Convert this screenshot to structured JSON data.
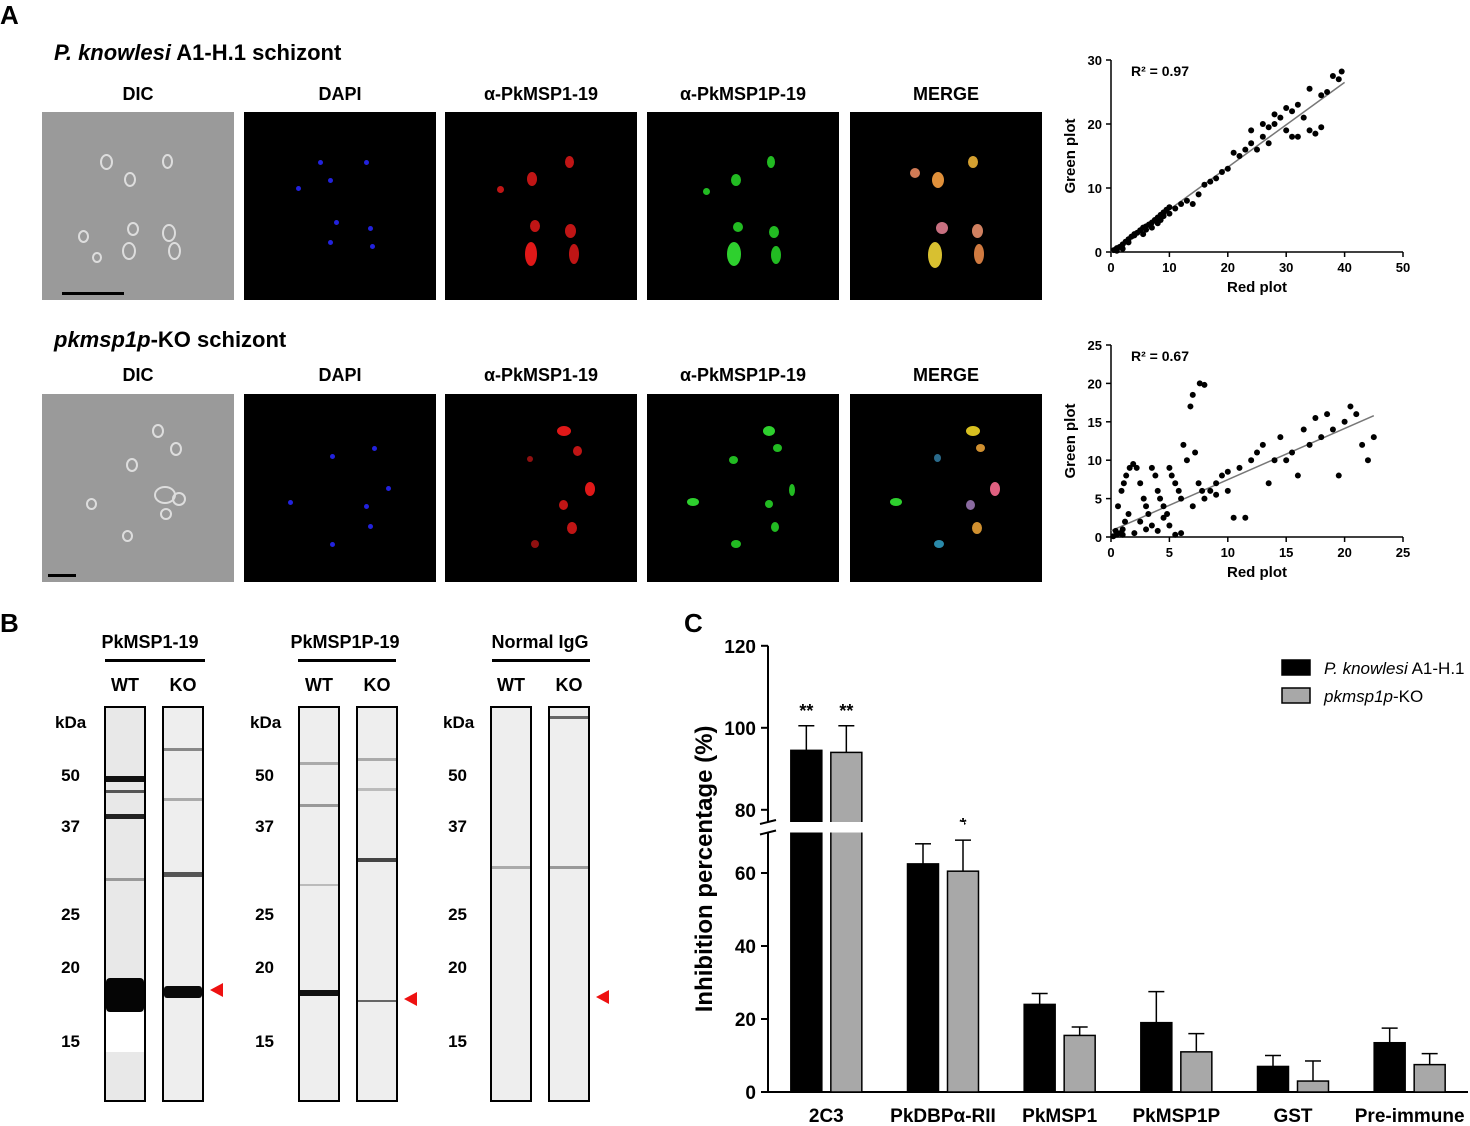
{
  "panels": {
    "A": "A",
    "B": "B",
    "C": "C"
  },
  "panel_a": {
    "rows": [
      {
        "title_italic": "P. knowlesi",
        "title_rest": " A1-H.1 schizont"
      },
      {
        "title_italic": "pkmsp1p",
        "title_rest": "-KO schizont"
      }
    ],
    "channels": [
      "DIC",
      "DAPI",
      "α-PkMSP1-19",
      "α-PkMSP1P-19",
      "MERGE"
    ]
  },
  "chart_data": [
    {
      "type": "scatter",
      "title": "",
      "annotation": "R² = 0.97",
      "xlabel": "Red plot",
      "ylabel": "Green plot",
      "xlim": [
        0,
        50
      ],
      "ylim": [
        0,
        30
      ],
      "xticks": [
        0,
        10,
        20,
        30,
        40,
        50
      ],
      "yticks": [
        0,
        10,
        20,
        30
      ],
      "fit_line": [
        [
          0,
          0
        ],
        [
          40,
          26.5
        ]
      ],
      "points": [
        [
          0.5,
          0.3
        ],
        [
          1,
          0.6
        ],
        [
          1.5,
          0.8
        ],
        [
          2,
          1.2
        ],
        [
          2.5,
          1.6
        ],
        [
          3,
          2
        ],
        [
          3.5,
          2.4
        ],
        [
          4,
          2.6
        ],
        [
          4.5,
          3
        ],
        [
          5,
          3.4
        ],
        [
          5.5,
          3.8
        ],
        [
          6,
          4
        ],
        [
          6.5,
          4.3
        ],
        [
          7,
          4.6
        ],
        [
          7.5,
          5
        ],
        [
          8,
          5.4
        ],
        [
          8.5,
          5.8
        ],
        [
          9,
          6.2
        ],
        [
          9.5,
          6.6
        ],
        [
          10,
          7
        ],
        [
          3,
          1.5
        ],
        [
          4,
          2.8
        ],
        [
          5.5,
          2.8
        ],
        [
          6,
          3.5
        ],
        [
          7,
          3.8
        ],
        [
          8,
          4.5
        ],
        [
          8.5,
          5
        ],
        [
          9,
          5.6
        ],
        [
          10,
          6
        ],
        [
          11,
          6.8
        ],
        [
          12,
          7.5
        ],
        [
          13,
          8
        ],
        [
          14,
          7.5
        ],
        [
          15,
          9
        ],
        [
          16,
          10.5
        ],
        [
          17,
          11
        ],
        [
          18,
          11.5
        ],
        [
          19,
          12.5
        ],
        [
          20,
          13
        ],
        [
          21,
          15.5
        ],
        [
          22,
          15
        ],
        [
          23,
          16
        ],
        [
          24,
          17
        ],
        [
          25,
          16
        ],
        [
          26,
          18
        ],
        [
          27,
          19.5
        ],
        [
          28,
          20
        ],
        [
          29,
          21
        ],
        [
          30,
          19
        ],
        [
          31,
          22
        ],
        [
          32,
          18
        ],
        [
          33,
          21
        ],
        [
          34,
          19
        ],
        [
          35,
          18.5
        ],
        [
          36,
          19.5
        ],
        [
          34,
          25.5
        ],
        [
          36,
          24.5
        ],
        [
          37,
          25
        ],
        [
          38,
          27.5
        ],
        [
          39,
          27
        ],
        [
          39.5,
          28.2
        ],
        [
          24,
          19
        ],
        [
          26,
          20
        ],
        [
          28,
          21.5
        ],
        [
          30,
          22.5
        ],
        [
          32,
          23
        ],
        [
          31,
          18
        ],
        [
          27,
          17
        ],
        [
          2,
          0.5
        ],
        [
          1,
          0.2
        ]
      ]
    },
    {
      "type": "scatter",
      "title": "",
      "annotation": "R² = 0.67",
      "xlabel": "Red plot",
      "ylabel": "Green plot",
      "xlim": [
        0,
        25
      ],
      "ylim": [
        0,
        25
      ],
      "xticks": [
        0,
        5,
        10,
        15,
        20,
        25
      ],
      "yticks": [
        0,
        5,
        10,
        15,
        20,
        25
      ],
      "fit_line": [
        [
          0,
          0.8
        ],
        [
          22.5,
          15.8
        ]
      ],
      "points": [
        [
          0.2,
          0.1
        ],
        [
          0.5,
          0.3
        ],
        [
          0.8,
          0.5
        ],
        [
          1,
          1
        ],
        [
          1.2,
          2
        ],
        [
          1.5,
          3
        ],
        [
          0.6,
          4
        ],
        [
          0.9,
          6
        ],
        [
          1.1,
          7
        ],
        [
          1.3,
          8
        ],
        [
          1.6,
          9
        ],
        [
          1.9,
          9.5
        ],
        [
          2.2,
          9
        ],
        [
          2.5,
          7
        ],
        [
          2.8,
          5
        ],
        [
          3,
          4
        ],
        [
          3.2,
          3
        ],
        [
          3.5,
          9
        ],
        [
          3.8,
          8
        ],
        [
          4,
          6
        ],
        [
          4.2,
          5
        ],
        [
          4.5,
          4
        ],
        [
          4.8,
          3
        ],
        [
          5,
          9
        ],
        [
          5.2,
          8
        ],
        [
          5.5,
          7
        ],
        [
          5.8,
          6
        ],
        [
          6,
          5
        ],
        [
          6.2,
          12
        ],
        [
          6.5,
          10
        ],
        [
          6.8,
          17
        ],
        [
          7,
          18.5
        ],
        [
          7.2,
          11
        ],
        [
          7.5,
          7
        ],
        [
          7.8,
          6
        ],
        [
          7.6,
          20
        ],
        [
          8,
          19.8
        ],
        [
          8.5,
          6
        ],
        [
          9,
          7
        ],
        [
          9.5,
          8
        ],
        [
          10,
          8.5
        ],
        [
          10.5,
          2.5
        ],
        [
          11,
          9
        ],
        [
          11.5,
          2.5
        ],
        [
          12,
          10
        ],
        [
          12.5,
          11
        ],
        [
          13,
          12
        ],
        [
          13.5,
          7
        ],
        [
          14,
          10
        ],
        [
          14.5,
          13
        ],
        [
          15,
          10
        ],
        [
          15.5,
          11
        ],
        [
          16,
          8
        ],
        [
          16.5,
          14
        ],
        [
          17,
          12
        ],
        [
          17.5,
          15.5
        ],
        [
          18,
          13
        ],
        [
          18.5,
          16
        ],
        [
          19,
          14
        ],
        [
          19.5,
          8
        ],
        [
          20,
          15
        ],
        [
          20.5,
          17
        ],
        [
          21,
          16
        ],
        [
          21.5,
          12
        ],
        [
          22,
          10
        ],
        [
          22.5,
          13
        ],
        [
          2,
          0.5
        ],
        [
          3,
          1
        ],
        [
          4,
          0.8
        ],
        [
          5,
          1.5
        ],
        [
          6,
          0.5
        ],
        [
          5.5,
          0.3
        ],
        [
          2.5,
          2
        ],
        [
          3.5,
          1.5
        ],
        [
          4.5,
          2.5
        ],
        [
          1,
          0.3
        ],
        [
          0.4,
          0.8
        ],
        [
          7,
          4
        ],
        [
          8,
          5
        ],
        [
          9,
          5.5
        ],
        [
          10,
          6
        ]
      ]
    },
    {
      "type": "bar",
      "title": "",
      "ylabel": "Inhibition percentage (%)",
      "categories": [
        "2C3",
        "PkDBPα-RII",
        "PkMSP1",
        "PkMSP1P",
        "GST",
        "Pre-immune"
      ],
      "yticks": [
        0,
        20,
        40,
        60,
        80,
        100,
        120
      ],
      "axis_break": [
        70,
        78
      ],
      "series": [
        {
          "name_italic": "P. knowlesi",
          "name_rest": " A1-H.1",
          "color": "#000000",
          "values": [
            94.5,
            62.5,
            24,
            19,
            7,
            13.5
          ],
          "errors": [
            6,
            5.5,
            3,
            8.5,
            3,
            4
          ]
        },
        {
          "name_italic": "pkmsp1p",
          "name_rest": "-KO",
          "color": "#a8a8a8",
          "values": [
            94,
            60.5,
            15.5,
            11,
            3,
            7.5
          ],
          "errors": [
            6.5,
            8.5,
            2.3,
            5,
            5.5,
            3
          ]
        }
      ],
      "significance": [
        "**",
        "**",
        "**",
        "*",
        "",
        "",
        "",
        "",
        "",
        "",
        "",
        ""
      ]
    }
  ],
  "panel_b": {
    "blots": [
      {
        "title": "PkMSP1-19"
      },
      {
        "title": "PkMSP1P-19"
      },
      {
        "title": "Normal IgG"
      }
    ],
    "lanes": [
      "WT",
      "KO"
    ],
    "unit": "kDa",
    "markers": [
      "50",
      "37",
      "25",
      "20",
      "15"
    ]
  }
}
